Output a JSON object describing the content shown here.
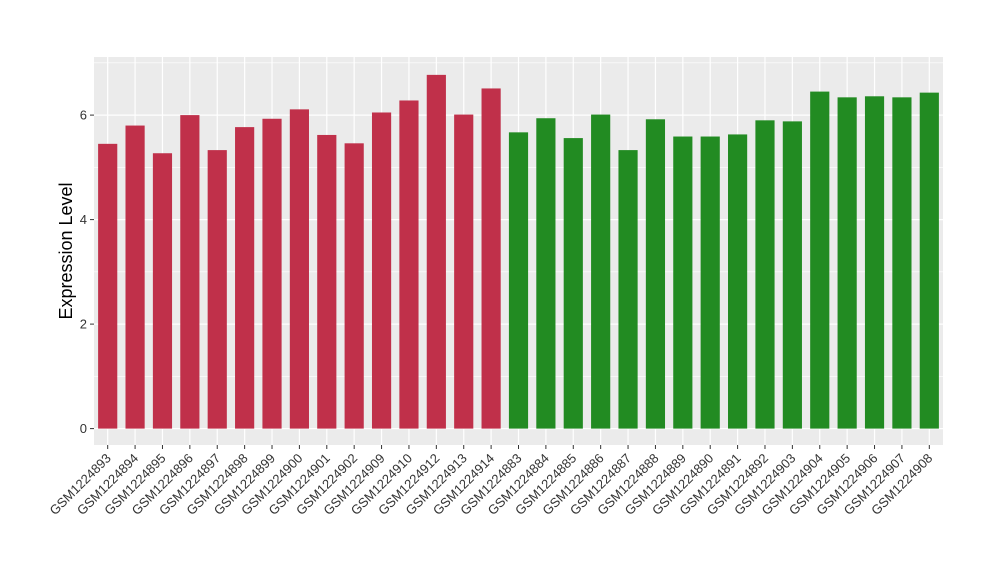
{
  "chart_data": {
    "type": "bar",
    "title": "",
    "xlabel": "",
    "ylabel": "Expression Level",
    "ylim": [
      0,
      7.05
    ],
    "yticks": [
      0,
      2,
      4,
      6
    ],
    "grid": true,
    "legend": "none",
    "colors": {
      "group_1": "#C0304A",
      "group_2": "#228B22",
      "panel_bg": "#EBEBEB",
      "grid": "#FFFFFF"
    },
    "categories": [
      "GSM1224893",
      "GSM1224894",
      "GSM1224895",
      "GSM1224896",
      "GSM1224897",
      "GSM1224898",
      "GSM1224899",
      "GSM1224900",
      "GSM1224901",
      "GSM1224902",
      "GSM1224909",
      "GSM1224910",
      "GSM1224912",
      "GSM1224913",
      "GSM1224914",
      "GSM1224883",
      "GSM1224884",
      "GSM1224885",
      "GSM1224886",
      "GSM1224887",
      "GSM1224888",
      "GSM1224889",
      "GSM1224890",
      "GSM1224891",
      "GSM1224892",
      "GSM1224903",
      "GSM1224904",
      "GSM1224905",
      "GSM1224906",
      "GSM1224907",
      "GSM1224908"
    ],
    "values": [
      5.45,
      5.8,
      5.27,
      6.0,
      5.33,
      5.77,
      5.93,
      6.11,
      5.62,
      5.46,
      6.05,
      6.28,
      6.77,
      6.01,
      6.51,
      5.67,
      5.94,
      5.56,
      6.01,
      5.33,
      5.92,
      5.59,
      5.59,
      5.63,
      5.9,
      5.88,
      6.45,
      6.34,
      6.36,
      6.34,
      6.43
    ],
    "groups": [
      "group_1",
      "group_1",
      "group_1",
      "group_1",
      "group_1",
      "group_1",
      "group_1",
      "group_1",
      "group_1",
      "group_1",
      "group_1",
      "group_1",
      "group_1",
      "group_1",
      "group_1",
      "group_2",
      "group_2",
      "group_2",
      "group_2",
      "group_2",
      "group_2",
      "group_2",
      "group_2",
      "group_2",
      "group_2",
      "group_2",
      "group_2",
      "group_2",
      "group_2",
      "group_2",
      "group_2"
    ]
  }
}
